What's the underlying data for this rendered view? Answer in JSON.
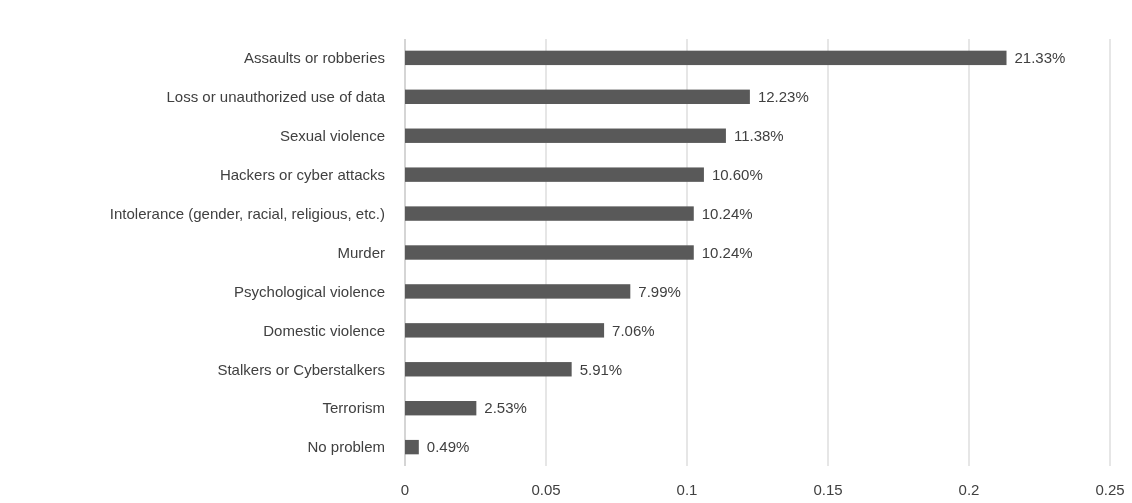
{
  "chart_data": {
    "type": "bar",
    "orientation": "horizontal",
    "categories": [
      "Assaults or robberies",
      "Loss or unauthorized use of data",
      "Sexual violence",
      "Hackers or cyber attacks",
      "Intolerance (gender, racial, religious, etc.)",
      "Murder",
      "Psychological violence",
      "Domestic violence",
      "Stalkers or Cyberstalkers",
      "Terrorism",
      "No problem"
    ],
    "values": [
      0.2133,
      0.1223,
      0.1138,
      0.106,
      0.1024,
      0.1024,
      0.0799,
      0.0706,
      0.0591,
      0.0253,
      0.0049
    ],
    "value_labels": [
      "21.33%",
      "12.23%",
      "11.38%",
      "10.60%",
      "10.24%",
      "10.24%",
      "7.99%",
      "7.06%",
      "5.91%",
      "2.53%",
      "0.49%"
    ],
    "color": "#595959",
    "xlim": [
      0,
      0.25
    ],
    "xticks": [
      0,
      0.05,
      0.1,
      0.15,
      0.2,
      0.25
    ],
    "grid": "x"
  }
}
